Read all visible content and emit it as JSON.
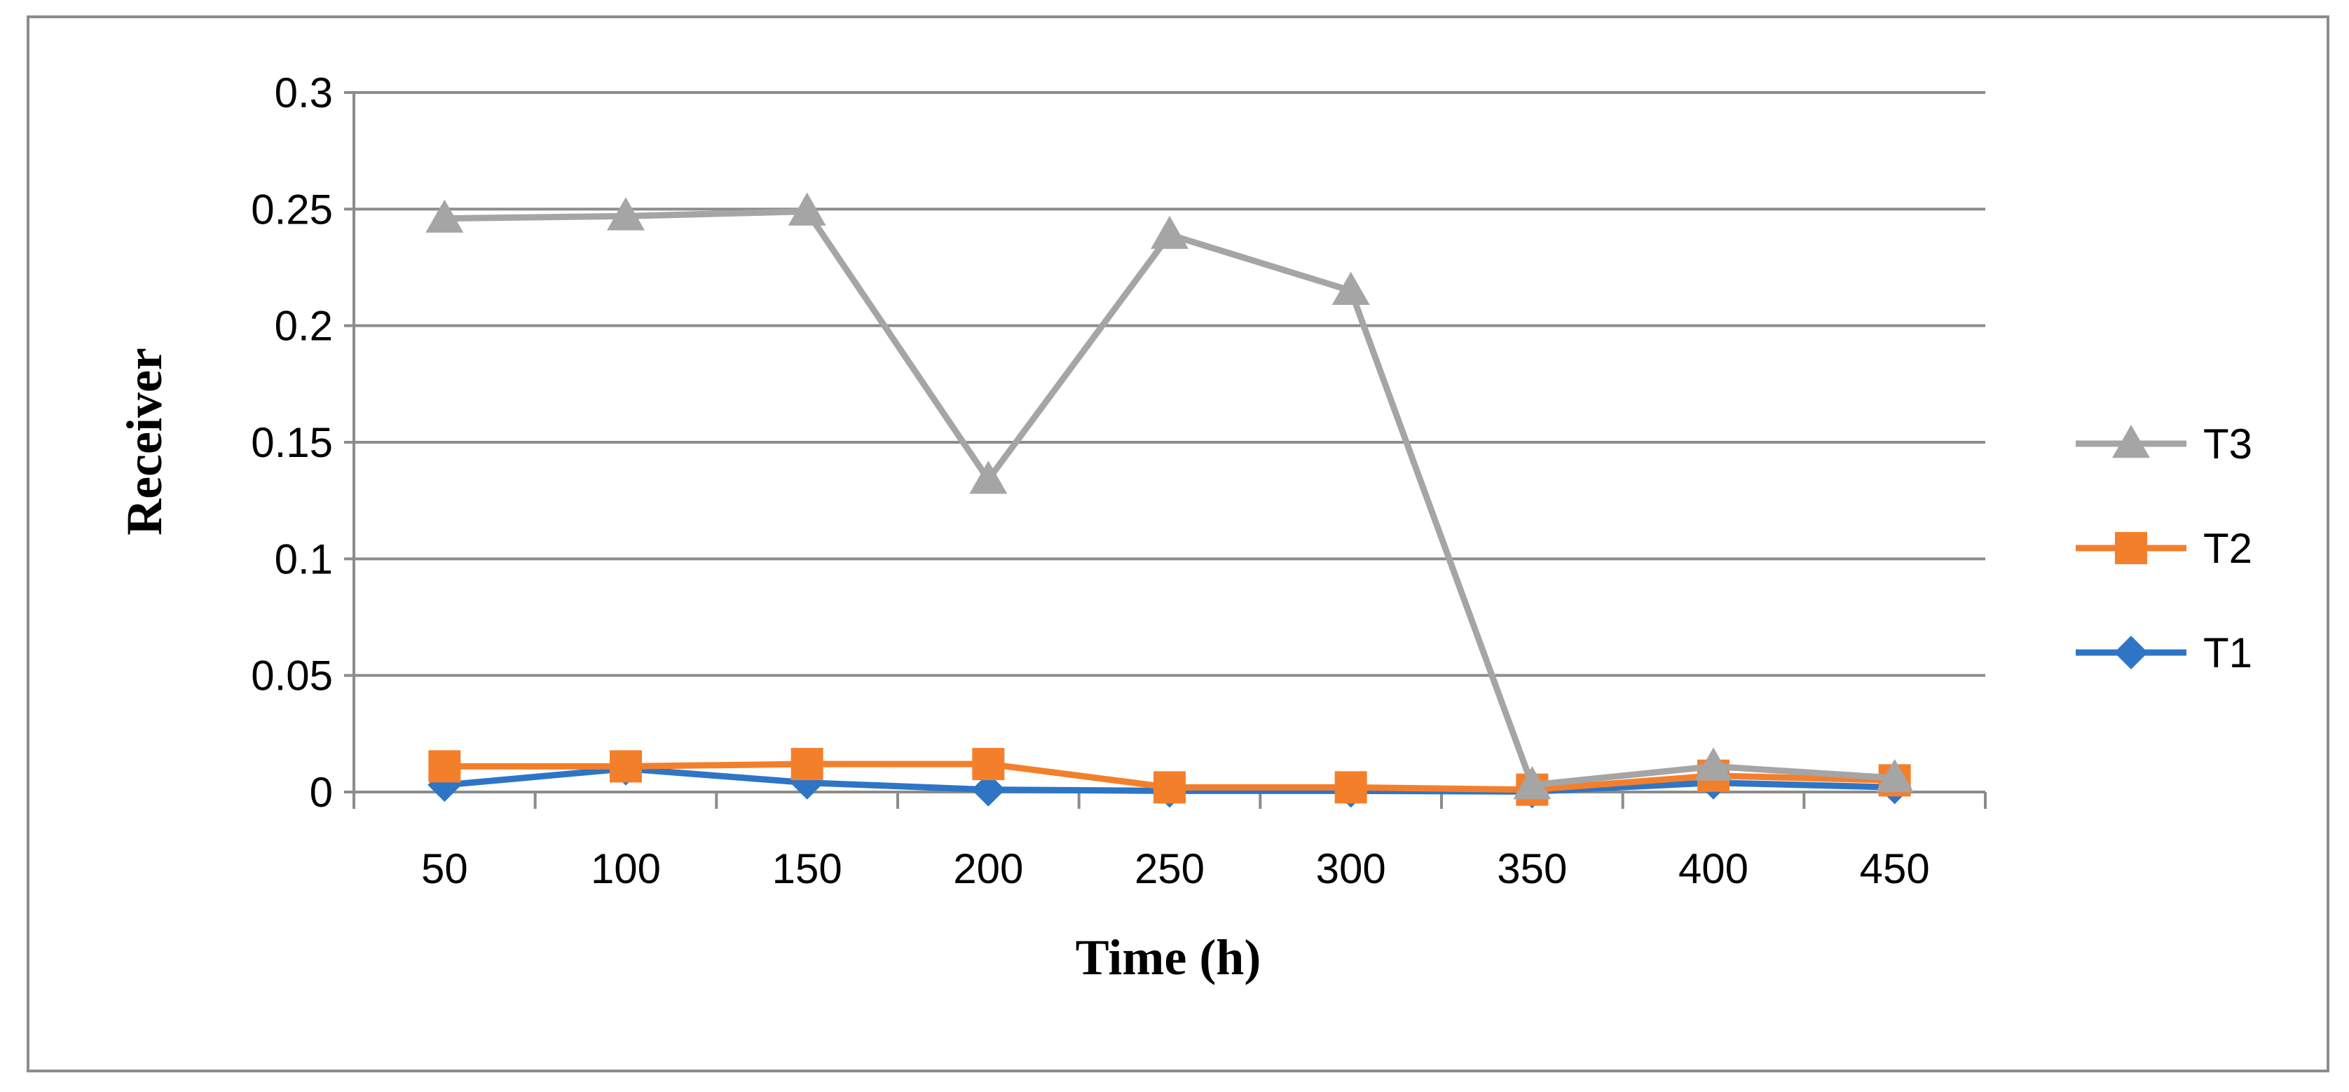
{
  "chart_data": {
    "type": "line",
    "title": "",
    "xlabel": "Time (h)",
    "ylabel": "Receiver",
    "categories": [
      "50",
      "100",
      "150",
      "200",
      "250",
      "300",
      "350",
      "400",
      "450"
    ],
    "ylim": [
      0,
      0.3
    ],
    "yticks": [
      0,
      0.05,
      0.1,
      0.15,
      0.2,
      0.25,
      0.3
    ],
    "ytick_labels": [
      "0",
      "0.05",
      "0.1",
      "0.15",
      "0.2",
      "0.25",
      "0.3"
    ],
    "grid": true,
    "legend_position": "right",
    "series": [
      {
        "name": "T1",
        "marker": "diamond",
        "color": "#2e75c6",
        "values": [
          0.003,
          0.01,
          0.004,
          0.001,
          0.0005,
          0.0005,
          0.0002,
          0.004,
          0.002
        ]
      },
      {
        "name": "T2",
        "marker": "square",
        "color": "#f47f2b",
        "values": [
          0.011,
          0.011,
          0.012,
          0.012,
          0.002,
          0.002,
          0.001,
          0.007,
          0.005
        ]
      },
      {
        "name": "T3",
        "marker": "triangle",
        "color": "#a5a5a5",
        "values": [
          0.246,
          0.247,
          0.249,
          0.134,
          0.239,
          0.215,
          0.003,
          0.011,
          0.006
        ]
      }
    ],
    "legend_order": [
      "T3",
      "T2",
      "T1"
    ]
  }
}
